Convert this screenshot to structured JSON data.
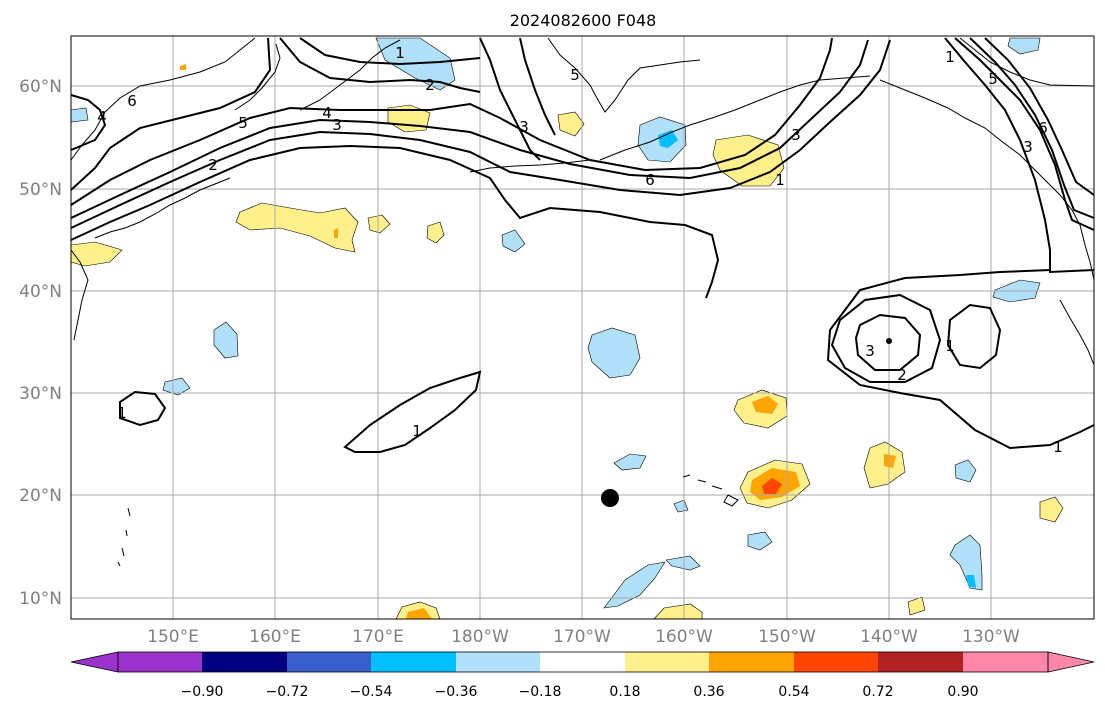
{
  "title": "2024082600 F048",
  "map": {
    "lat_labels": [
      "60°N",
      "50°N",
      "40°N",
      "30°N",
      "20°N",
      "10°N"
    ],
    "lon_labels": [
      "150°E",
      "160°E",
      "170°E",
      "180°W",
      "170°W",
      "160°W",
      "150°W",
      "140°W",
      "130°W"
    ],
    "contour_labels": [
      "1",
      "2",
      "4",
      "5",
      "6",
      "3",
      "4",
      "3",
      "2",
      "6",
      "5",
      "3",
      "1",
      "6",
      "5",
      "3",
      "1",
      "3",
      "2",
      "1",
      "1",
      "1",
      "1"
    ]
  },
  "colorbar": {
    "ticks": [
      "−0.90",
      "−0.72",
      "−0.54",
      "−0.36",
      "−0.18",
      "0.18",
      "0.36",
      "0.54",
      "0.72",
      "0.90"
    ],
    "colors": [
      "#9933cc",
      "#000080",
      "#3a5fcd",
      "#00bfff",
      "#b0e0fa",
      "#ffffff",
      "#fff08c",
      "#ffa500",
      "#ff4500",
      "#b22222",
      "#ff88aa"
    ]
  },
  "colors": {
    "pos_light": "#fff08c",
    "pos_mid": "#ffa500",
    "pos_strong": "#ff4500",
    "neg_light": "#b0e0fa",
    "neg_mid": "#00bfff"
  }
}
